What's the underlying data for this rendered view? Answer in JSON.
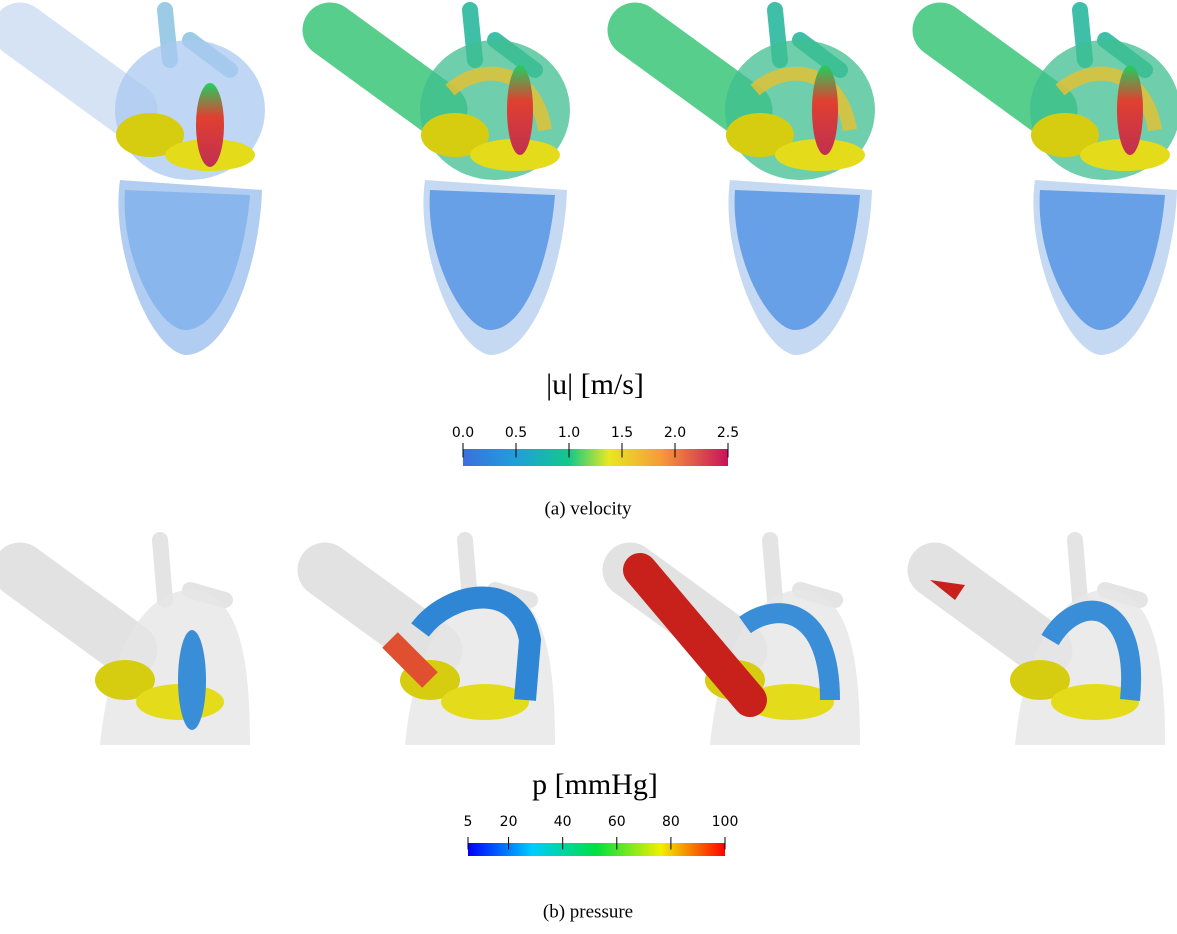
{
  "panels": [
    {
      "colorbar": {
        "label": "|u| [m/s]",
        "lim": [
          0,
          2.5
        ],
        "ticks": [
          {
            "value": 0,
            "label": "0.0"
          },
          0.5,
          {
            "value": 1,
            "label": "1.0"
          },
          1.5,
          {
            "value": 2,
            "label": "2.0"
          },
          2.5
        ]
      },
      "caption": "(a) velocity"
    },
    {
      "colorbar": {
        "label": "p [mmHg]",
        "lim": [
          5,
          100
        ],
        "ticks": [
          5,
          20,
          40,
          60,
          80,
          100
        ]
      },
      "caption": "(b) pressure"
    }
  ]
}
